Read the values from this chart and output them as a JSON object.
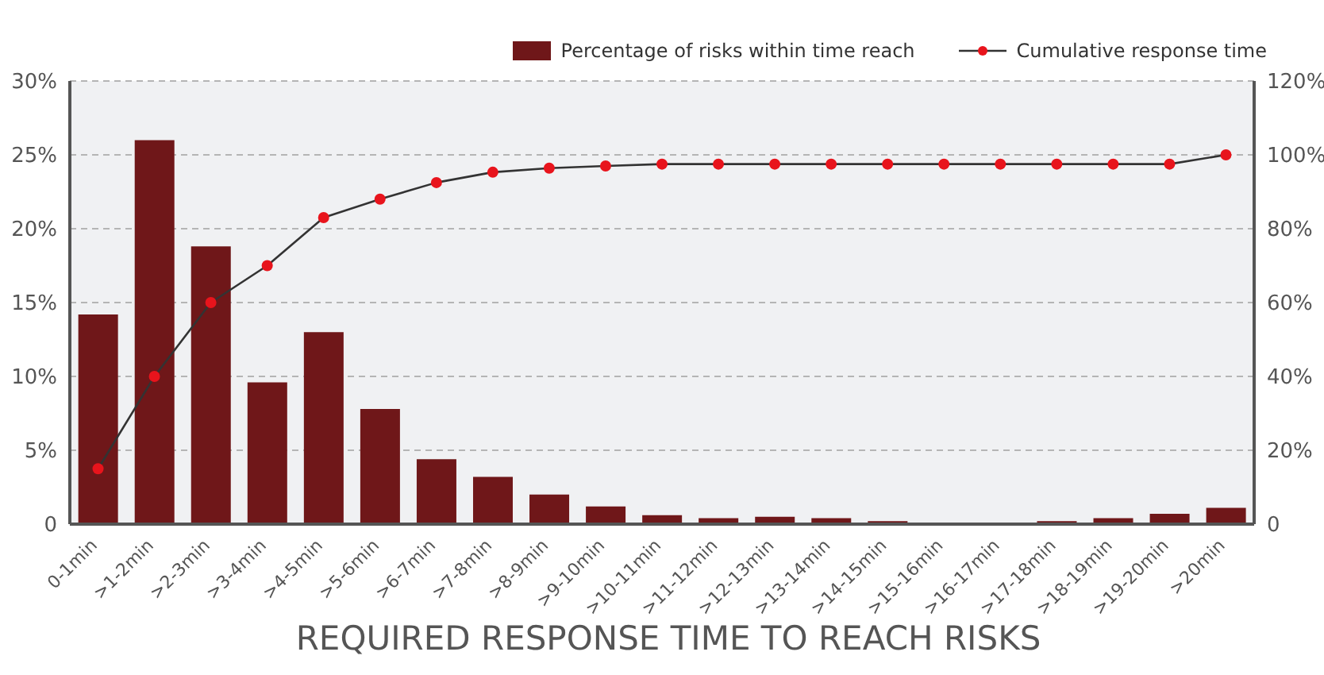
{
  "chart_data": {
    "type": "bar",
    "title": "REQUIRED RESPONSE TIME TO REACH RISKS",
    "categories": [
      "0-1min",
      ">1-2min",
      ">2-3min",
      ">3-4min",
      ">4-5min",
      ">5-6min",
      ">6-7min",
      ">7-8min",
      ">8-9min",
      ">9-10min",
      ">10-11min",
      ">11-12min",
      ">12-13min",
      ">13-14min",
      ">14-15min",
      ">15-16min",
      ">16-17min",
      ">17-18min",
      ">18-19min",
      ">19-20min",
      ">20min"
    ],
    "series": [
      {
        "name": "Percentage of risks within time reach",
        "color": "#6f1719",
        "values": [
          14.2,
          26.0,
          18.8,
          9.6,
          13.0,
          7.8,
          4.4,
          3.2,
          2.0,
          1.2,
          0.6,
          0.4,
          0.5,
          0.4,
          0.2,
          0,
          0,
          0.2,
          0.4,
          0.7,
          1.1
        ]
      },
      {
        "name": "Cumulative response time",
        "type": "line",
        "axis": "y2",
        "color": "#333333",
        "colors": [
          "#e8141c",
          "#e8141c",
          "#e8141c",
          "#e8141c",
          "#e8141c",
          "#e8141c",
          "#e8141c",
          "#e8141c",
          "#e8141c",
          "#e8141c",
          "#e8141c",
          "#e8141c",
          "#e8141c",
          "#e8141c",
          "#e8141c",
          "#e8141c",
          "#e8141c",
          "#e8141c",
          "#e8141c",
          "#e8141c",
          "#e8141c"
        ],
        "marker": "circle",
        "values": [
          15,
          40,
          60,
          70,
          83,
          88,
          92.5,
          95.3,
          96.4,
          97,
          97.5,
          97.5,
          97.5,
          97.5,
          97.5,
          97.5,
          97.5,
          97.5,
          97.5,
          97.5,
          100
        ]
      }
    ],
    "ylim": [
      0,
      30
    ],
    "yticks": [
      {
        "value": 0,
        "label": "0"
      },
      {
        "value": 5,
        "label": "5%"
      },
      {
        "value": 10,
        "label": "10%"
      },
      {
        "value": 15,
        "label": "15%"
      },
      {
        "value": 20,
        "label": "20%"
      },
      {
        "value": 25,
        "label": "25%"
      },
      {
        "value": 30,
        "label": "30%"
      }
    ],
    "y2lim": [
      0,
      120
    ],
    "y2ticks": [
      {
        "value": 0,
        "label": "0"
      },
      {
        "value": 20,
        "label": "20%"
      },
      {
        "value": 40,
        "label": "40%"
      },
      {
        "value": 60,
        "label": "60%"
      },
      {
        "value": 80,
        "label": "80%"
      },
      {
        "value": 100,
        "label": "100%"
      },
      {
        "value": 120,
        "label": "120%"
      }
    ],
    "grid": "y",
    "legend": "top right"
  }
}
